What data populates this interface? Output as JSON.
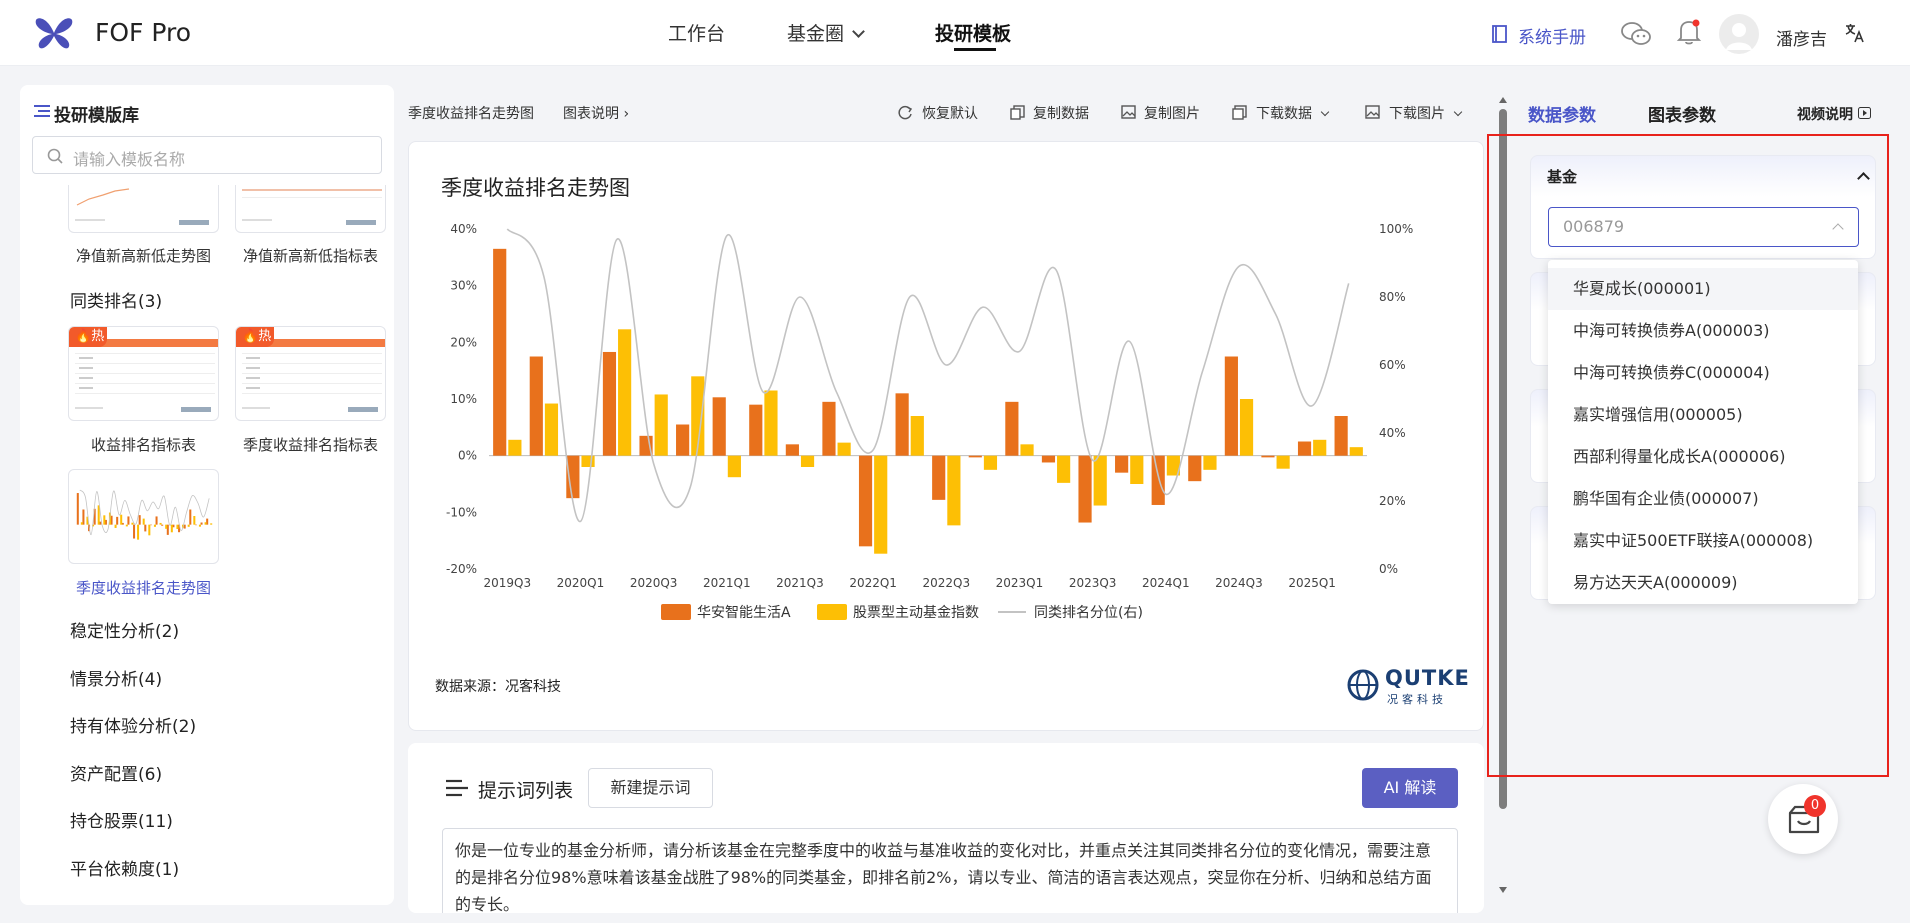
{
  "header": {
    "brand": "FOF Pro",
    "nav": [
      {
        "label": "工作台"
      },
      {
        "label": "基金圈"
      },
      {
        "label": "投研模板"
      }
    ],
    "manual_label": "系统手册",
    "username": "潘彦吉"
  },
  "left_panel": {
    "title": "投研模版库",
    "search_placeholder": "请输入模板名称",
    "hot_label": "热",
    "thumbs": [
      {
        "label": "净值新高新低走势图"
      },
      {
        "label": "净值新高新低指标表"
      },
      {
        "label": "收益排名指标表"
      },
      {
        "label": "季度收益排名指标表"
      },
      {
        "label": "季度收益排名走势图"
      }
    ],
    "categories": [
      {
        "label": "同类排名(3)"
      },
      {
        "label": "稳定性分析(2)"
      },
      {
        "label": "情景分析(4)"
      },
      {
        "label": "持有体验分析(2)"
      },
      {
        "label": "资产配置(6)"
      },
      {
        "label": "持仓股票(11)"
      },
      {
        "label": "平台依赖度(1)"
      }
    ]
  },
  "toolbar": {
    "breadcrumb": "季度收益排名走势图",
    "chart_desc": "图表说明",
    "restore": "恢复默认",
    "copy_data": "复制数据",
    "copy_image": "复制图片",
    "download_data": "下载数据",
    "download_image": "下载图片"
  },
  "chart_card": {
    "title": "季度收益排名走势图",
    "source": "数据来源：况客科技",
    "logo_text": "QUTKE",
    "logo_sub": "况客科技"
  },
  "chart_data": {
    "type": "bar",
    "categories": [
      "2019Q3",
      "2019Q4",
      "2020Q1",
      "2020Q2",
      "2020Q3",
      "2020Q4",
      "2021Q1",
      "2021Q2",
      "2021Q3",
      "2021Q4",
      "2022Q1",
      "2022Q2",
      "2022Q3",
      "2022Q4",
      "2023Q1",
      "2023Q2",
      "2023Q3",
      "2023Q4",
      "2024Q1",
      "2024Q2",
      "2024Q3",
      "2024Q4",
      "2025Q1",
      "2025Q2"
    ],
    "x_tick_labels": [
      "2019Q3",
      "2020Q1",
      "2020Q3",
      "2021Q1",
      "2021Q3",
      "2022Q1",
      "2022Q3",
      "2023Q1",
      "2023Q3",
      "2024Q1",
      "2024Q3",
      "2025Q1"
    ],
    "series": [
      {
        "name": "华安智能生活A",
        "color": "#e8711c",
        "values": [
          36.5,
          17.5,
          -7.5,
          18.3,
          3.5,
          5.5,
          10.3,
          9.0,
          2.0,
          9.5,
          -16.0,
          11.0,
          -7.8,
          -0.3,
          9.5,
          -1.2,
          -11.8,
          -3.0,
          -8.7,
          -4.5,
          17.5,
          -0.3,
          2.5,
          7.0
        ]
      },
      {
        "name": "股票型主动基金指数",
        "color": "#fdbf05",
        "values": [
          2.8,
          9.2,
          -2.0,
          22.3,
          10.8,
          14.0,
          -3.8,
          11.5,
          -2.0,
          2.3,
          -17.3,
          7.0,
          -12.3,
          -2.5,
          2.0,
          -4.8,
          -8.8,
          -5.0,
          -3.5,
          -2.5,
          10.0,
          -2.3,
          2.8,
          1.5
        ]
      },
      {
        "name": "同类排名分位(右)",
        "color": "#c3c3c3",
        "values": [
          100,
          86,
          14,
          97,
          31,
          24,
          98,
          52,
          80,
          52,
          35,
          80,
          60,
          77,
          64,
          88,
          32,
          67,
          22,
          58,
          89,
          75,
          48,
          84
        ]
      }
    ],
    "y_left": {
      "ticks": [
        "40%",
        "30%",
        "20%",
        "10%",
        "0%",
        "-10%",
        "-20%"
      ],
      "min": -20,
      "max": 40
    },
    "y_right": {
      "ticks": [
        "100%",
        "80%",
        "60%",
        "40%",
        "20%",
        "0%"
      ],
      "min": 0,
      "max": 100
    },
    "legend_position": "bottom"
  },
  "prompt": {
    "title": "提示词列表",
    "new_button": "新建提示词",
    "ai_button": "AI 解读",
    "text": "你是一位专业的基金分析师，请分析该基金在完整季度中的收益与基准收益的变化对比，并重点关注其同类排名分位的变化情况，需要注意的是排名分位98%意味着该基金战胜了98%的同类基金，即排名前2%，请以专业、简洁的语言表达观点，突显你在分析、归纳和总结方面的专长。"
  },
  "right_panel": {
    "tab_data": "数据参数",
    "tab_chart": "图表参数",
    "video": "视频说明",
    "fund_label": "基金",
    "fund_value": "006879",
    "options": [
      {
        "label": "华夏成长(000001)"
      },
      {
        "label": "中海可转换债券A(000003)"
      },
      {
        "label": "中海可转换债券C(000004)"
      },
      {
        "label": "嘉实增强信用(000005)"
      },
      {
        "label": "西部利得量化成长A(000006)"
      },
      {
        "label": "鹏华国有企业债(000007)"
      },
      {
        "label": "嘉实中证500ETF联接A(000008)"
      },
      {
        "label": "易方达天天A(000009)"
      }
    ],
    "cart_count": "0"
  },
  "colors": {
    "accent": "#4a56c8",
    "ai": "#5b5fc2",
    "highlight": "#e8221b"
  }
}
